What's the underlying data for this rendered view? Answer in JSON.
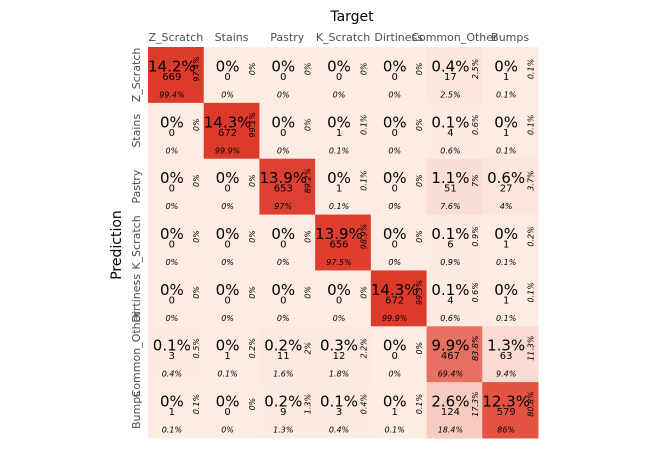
{
  "chart_data": {
    "type": "heatmap",
    "title": "Target",
    "y_label": "Prediction",
    "columns": [
      "Z_Scratch",
      "Stains",
      "Pastry",
      "K_Scratch",
      "Dirtiness",
      "Common_Other",
      "Bumps"
    ],
    "rows": [
      "Z_Scratch",
      "Stains",
      "Pastry",
      "K_Scratch",
      "Dirtiness",
      "Common_Other",
      "Bumps"
    ],
    "color_low": "#fdece2",
    "color_high": "#de3a2b",
    "cells": [
      [
        {
          "percent": "14.2%",
          "count": 669,
          "row_percent": "97.4%",
          "col_percent": "99.4%"
        },
        {
          "percent": "0%",
          "count": 0,
          "row_percent": "0%",
          "col_percent": "0%"
        },
        {
          "percent": "0%",
          "count": 0,
          "row_percent": "0%",
          "col_percent": "0%"
        },
        {
          "percent": "0%",
          "count": 0,
          "row_percent": "0%",
          "col_percent": "0%"
        },
        {
          "percent": "0%",
          "count": 0,
          "row_percent": "0%",
          "col_percent": "0%"
        },
        {
          "percent": "0.4%",
          "count": 17,
          "row_percent": "2.5%",
          "col_percent": "2.5%"
        },
        {
          "percent": "0%",
          "count": 1,
          "row_percent": "0.1%",
          "col_percent": "0.1%"
        }
      ],
      [
        {
          "percent": "0%",
          "count": 0,
          "row_percent": "0%",
          "col_percent": "0%"
        },
        {
          "percent": "14.3%",
          "count": 672,
          "row_percent": "99.1%",
          "col_percent": "99.9%"
        },
        {
          "percent": "0%",
          "count": 0,
          "row_percent": "0%",
          "col_percent": "0%"
        },
        {
          "percent": "0%",
          "count": 1,
          "row_percent": "0.1%",
          "col_percent": "0.1%"
        },
        {
          "percent": "0%",
          "count": 0,
          "row_percent": "0%",
          "col_percent": "0%"
        },
        {
          "percent": "0.1%",
          "count": 4,
          "row_percent": "0.6%",
          "col_percent": "0.6%"
        },
        {
          "percent": "0%",
          "count": 1,
          "row_percent": "0.1%",
          "col_percent": "0.1%"
        }
      ],
      [
        {
          "percent": "0%",
          "count": 0,
          "row_percent": "0%",
          "col_percent": "0%"
        },
        {
          "percent": "0%",
          "count": 0,
          "row_percent": "0%",
          "col_percent": "0%"
        },
        {
          "percent": "13.9%",
          "count": 653,
          "row_percent": "89.2%",
          "col_percent": "97%"
        },
        {
          "percent": "0%",
          "count": 1,
          "row_percent": "0.1%",
          "col_percent": "0.1%"
        },
        {
          "percent": "0%",
          "count": 0,
          "row_percent": "0%",
          "col_percent": "0%"
        },
        {
          "percent": "1.1%",
          "count": 51,
          "row_percent": "7%",
          "col_percent": "7.6%"
        },
        {
          "percent": "0.6%",
          "count": 27,
          "row_percent": "3.7%",
          "col_percent": "4%"
        }
      ],
      [
        {
          "percent": "0%",
          "count": 0,
          "row_percent": "0%",
          "col_percent": "0%"
        },
        {
          "percent": "0%",
          "count": 0,
          "row_percent": "0%",
          "col_percent": "0%"
        },
        {
          "percent": "0%",
          "count": 0,
          "row_percent": "0%",
          "col_percent": "0%"
        },
        {
          "percent": "13.9%",
          "count": 656,
          "row_percent": "98.9%",
          "col_percent": "97.5%"
        },
        {
          "percent": "0%",
          "count": 0,
          "row_percent": "0%",
          "col_percent": "0%"
        },
        {
          "percent": "0.1%",
          "count": 6,
          "row_percent": "0.9%",
          "col_percent": "0.9%"
        },
        {
          "percent": "0%",
          "count": 1,
          "row_percent": "0.2%",
          "col_percent": "0.1%"
        }
      ],
      [
        {
          "percent": "0%",
          "count": 0,
          "row_percent": "0%",
          "col_percent": "0%"
        },
        {
          "percent": "0%",
          "count": 0,
          "row_percent": "0%",
          "col_percent": "0%"
        },
        {
          "percent": "0%",
          "count": 0,
          "row_percent": "0%",
          "col_percent": "0%"
        },
        {
          "percent": "0%",
          "count": 0,
          "row_percent": "0%",
          "col_percent": "0%"
        },
        {
          "percent": "14.3%",
          "count": 672,
          "row_percent": "99.3%",
          "col_percent": "99.9%"
        },
        {
          "percent": "0.1%",
          "count": 4,
          "row_percent": "0.6%",
          "col_percent": "0.6%"
        },
        {
          "percent": "0%",
          "count": 1,
          "row_percent": "0.1%",
          "col_percent": "0.1%"
        }
      ],
      [
        {
          "percent": "0.1%",
          "count": 3,
          "row_percent": "0.5%",
          "col_percent": "0.4%"
        },
        {
          "percent": "0%",
          "count": 1,
          "row_percent": "0.2%",
          "col_percent": "0.1%"
        },
        {
          "percent": "0.2%",
          "count": 11,
          "row_percent": "2%",
          "col_percent": "1.6%"
        },
        {
          "percent": "0.3%",
          "count": 12,
          "row_percent": "2.2%",
          "col_percent": "1.8%"
        },
        {
          "percent": "0%",
          "count": 0,
          "row_percent": "0%",
          "col_percent": "0%"
        },
        {
          "percent": "9.9%",
          "count": 467,
          "row_percent": "83.8%",
          "col_percent": "69.4%"
        },
        {
          "percent": "1.3%",
          "count": 63,
          "row_percent": "11.3%",
          "col_percent": "9.4%"
        }
      ],
      [
        {
          "percent": "0%",
          "count": 1,
          "row_percent": "0.1%",
          "col_percent": "0.1%"
        },
        {
          "percent": "0%",
          "count": 0,
          "row_percent": "0%",
          "col_percent": "0%"
        },
        {
          "percent": "0.2%",
          "count": 9,
          "row_percent": "1.3%",
          "col_percent": "1.3%"
        },
        {
          "percent": "0.1%",
          "count": 3,
          "row_percent": "0.4%",
          "col_percent": "0.4%"
        },
        {
          "percent": "0%",
          "count": 1,
          "row_percent": "0.1%",
          "col_percent": "0.1%"
        },
        {
          "percent": "2.6%",
          "count": 124,
          "row_percent": "17.3%",
          "col_percent": "18.4%"
        },
        {
          "percent": "12.3%",
          "count": 579,
          "row_percent": "80.8%",
          "col_percent": "86%"
        }
      ]
    ]
  }
}
